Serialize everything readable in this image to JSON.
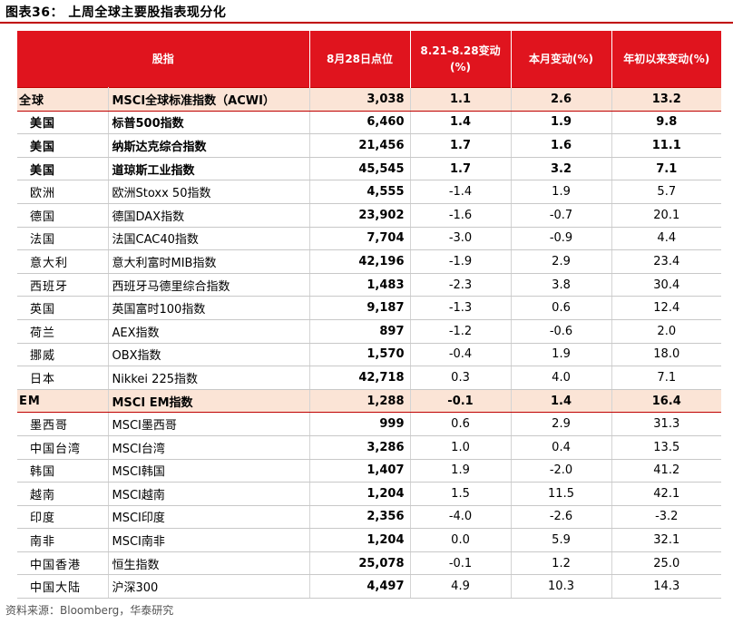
{
  "title": "图表36： 上周全球主要股指表现分化",
  "header": [
    "股指",
    "8月28日点位",
    "8.21-8.28变动\n(%)",
    "本月变动(%)",
    "年初以来变动(%)"
  ],
  "rows": [
    {
      "region": "全球",
      "index": "MSCI全球标准指数（ACWI）",
      "level": "3,038",
      "week": "1.1",
      "month": "2.6",
      "ytd": "13.2",
      "style": "group"
    },
    {
      "region": "美国",
      "index": "标普500指数",
      "level": "6,460",
      "week": "1.4",
      "month": "1.9",
      "ytd": "9.8",
      "style": "bold"
    },
    {
      "region": "美国",
      "index": "纳斯达克综合指数",
      "level": "21,456",
      "week": "1.7",
      "month": "1.6",
      "ytd": "11.1",
      "style": "bold"
    },
    {
      "region": "美国",
      "index": "道琼斯工业指数",
      "level": "45,545",
      "week": "1.7",
      "month": "3.2",
      "ytd": "7.1",
      "style": "bold"
    },
    {
      "region": "欧洲",
      "index": "欧洲Stoxx 50指数",
      "level": "4,555",
      "week": "-1.4",
      "month": "1.9",
      "ytd": "5.7",
      "style": "normal"
    },
    {
      "region": "德国",
      "index": "德国DAX指数",
      "level": "23,902",
      "week": "-1.6",
      "month": "-0.7",
      "ytd": "20.1",
      "style": "normal"
    },
    {
      "region": "法国",
      "index": "法国CAC40指数",
      "level": "7,704",
      "week": "-3.0",
      "month": "-0.9",
      "ytd": "4.4",
      "style": "normal"
    },
    {
      "region": "意大利",
      "index": "意大利富时MIB指数",
      "level": "42,196",
      "week": "-1.9",
      "month": "2.9",
      "ytd": "23.4",
      "style": "normal"
    },
    {
      "region": "西班牙",
      "index": "西班牙马德里综合指数",
      "level": "1,483",
      "week": "-2.3",
      "month": "3.8",
      "ytd": "30.4",
      "style": "normal"
    },
    {
      "region": "英国",
      "index": "英国富时100指数",
      "level": "9,187",
      "week": "-1.3",
      "month": "0.6",
      "ytd": "12.4",
      "style": "normal"
    },
    {
      "region": "荷兰",
      "index": "AEX指数",
      "level": "897",
      "week": "-1.2",
      "month": "-0.6",
      "ytd": "2.0",
      "style": "normal"
    },
    {
      "region": "挪威",
      "index": "OBX指数",
      "level": "1,570",
      "week": "-0.4",
      "month": "1.9",
      "ytd": "18.0",
      "style": "normal"
    },
    {
      "region": "日本",
      "index": "Nikkei 225指数",
      "level": "42,718",
      "week": "0.3",
      "month": "4.0",
      "ytd": "7.1",
      "style": "normal"
    },
    {
      "region": "EM",
      "index": "MSCI EM指数",
      "level": "1,288",
      "week": "-0.1",
      "month": "1.4",
      "ytd": "16.4",
      "style": "group"
    },
    {
      "region": "墨西哥",
      "index": "MSCI墨西哥",
      "level": "999",
      "week": "0.6",
      "month": "2.9",
      "ytd": "31.3",
      "style": "normal"
    },
    {
      "region": "中国台湾",
      "index": "MSCI台湾",
      "level": "3,286",
      "week": "1.0",
      "month": "0.4",
      "ytd": "13.5",
      "style": "normal"
    },
    {
      "region": "韩国",
      "index": "MSCI韩国",
      "level": "1,407",
      "week": "1.9",
      "month": "-2.0",
      "ytd": "41.2",
      "style": "normal"
    },
    {
      "region": "越南",
      "index": "MSCI越南",
      "level": "1,204",
      "week": "1.5",
      "month": "11.5",
      "ytd": "42.1",
      "style": "normal"
    },
    {
      "region": "印度",
      "index": "MSCI印度",
      "level": "2,356",
      "week": "-4.0",
      "month": "-2.6",
      "ytd": "-3.2",
      "style": "normal"
    },
    {
      "region": "南非",
      "index": "MSCI南非",
      "level": "1,204",
      "week": "0.0",
      "month": "5.9",
      "ytd": "32.1",
      "style": "normal"
    },
    {
      "region": "中国香港",
      "index": "恒生指数",
      "level": "25,078",
      "week": "-0.1",
      "month": "1.2",
      "ytd": "25.0",
      "style": "normal"
    },
    {
      "region": "中国大陆",
      "index": "沪深300",
      "level": "4,497",
      "week": "4.9",
      "month": "10.3",
      "ytd": "14.3",
      "style": "normal"
    }
  ],
  "source": "资料来源：Bloomberg，华泰研究"
}
